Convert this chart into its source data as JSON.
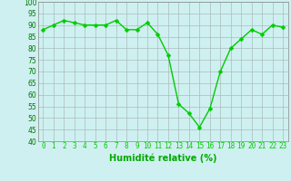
{
  "x": [
    0,
    1,
    2,
    3,
    4,
    5,
    6,
    7,
    8,
    9,
    10,
    11,
    12,
    13,
    14,
    15,
    16,
    17,
    18,
    19,
    20,
    21,
    22,
    23
  ],
  "y": [
    88,
    90,
    92,
    91,
    90,
    90,
    90,
    92,
    88,
    88,
    91,
    86,
    77,
    56,
    52,
    46,
    54,
    70,
    80,
    84,
    88,
    86,
    90,
    89
  ],
  "line_color": "#00cc00",
  "marker_color": "#00cc00",
  "bg_color": "#cff0f0",
  "grid_color": "#aabcbc",
  "xlabel": "Humidité relative (%)",
  "xlabel_color": "#00aa00",
  "ylim": [
    40,
    100
  ],
  "xlim": [
    -0.5,
    23.5
  ],
  "yticks": [
    40,
    45,
    50,
    55,
    60,
    65,
    70,
    75,
    80,
    85,
    90,
    95,
    100
  ],
  "xticks": [
    0,
    1,
    2,
    3,
    4,
    5,
    6,
    7,
    8,
    9,
    10,
    11,
    12,
    13,
    14,
    15,
    16,
    17,
    18,
    19,
    20,
    21,
    22,
    23
  ],
  "tick_fontsize": 5.5,
  "xlabel_fontsize": 7.0,
  "marker_size": 2.5,
  "line_width": 1.0
}
